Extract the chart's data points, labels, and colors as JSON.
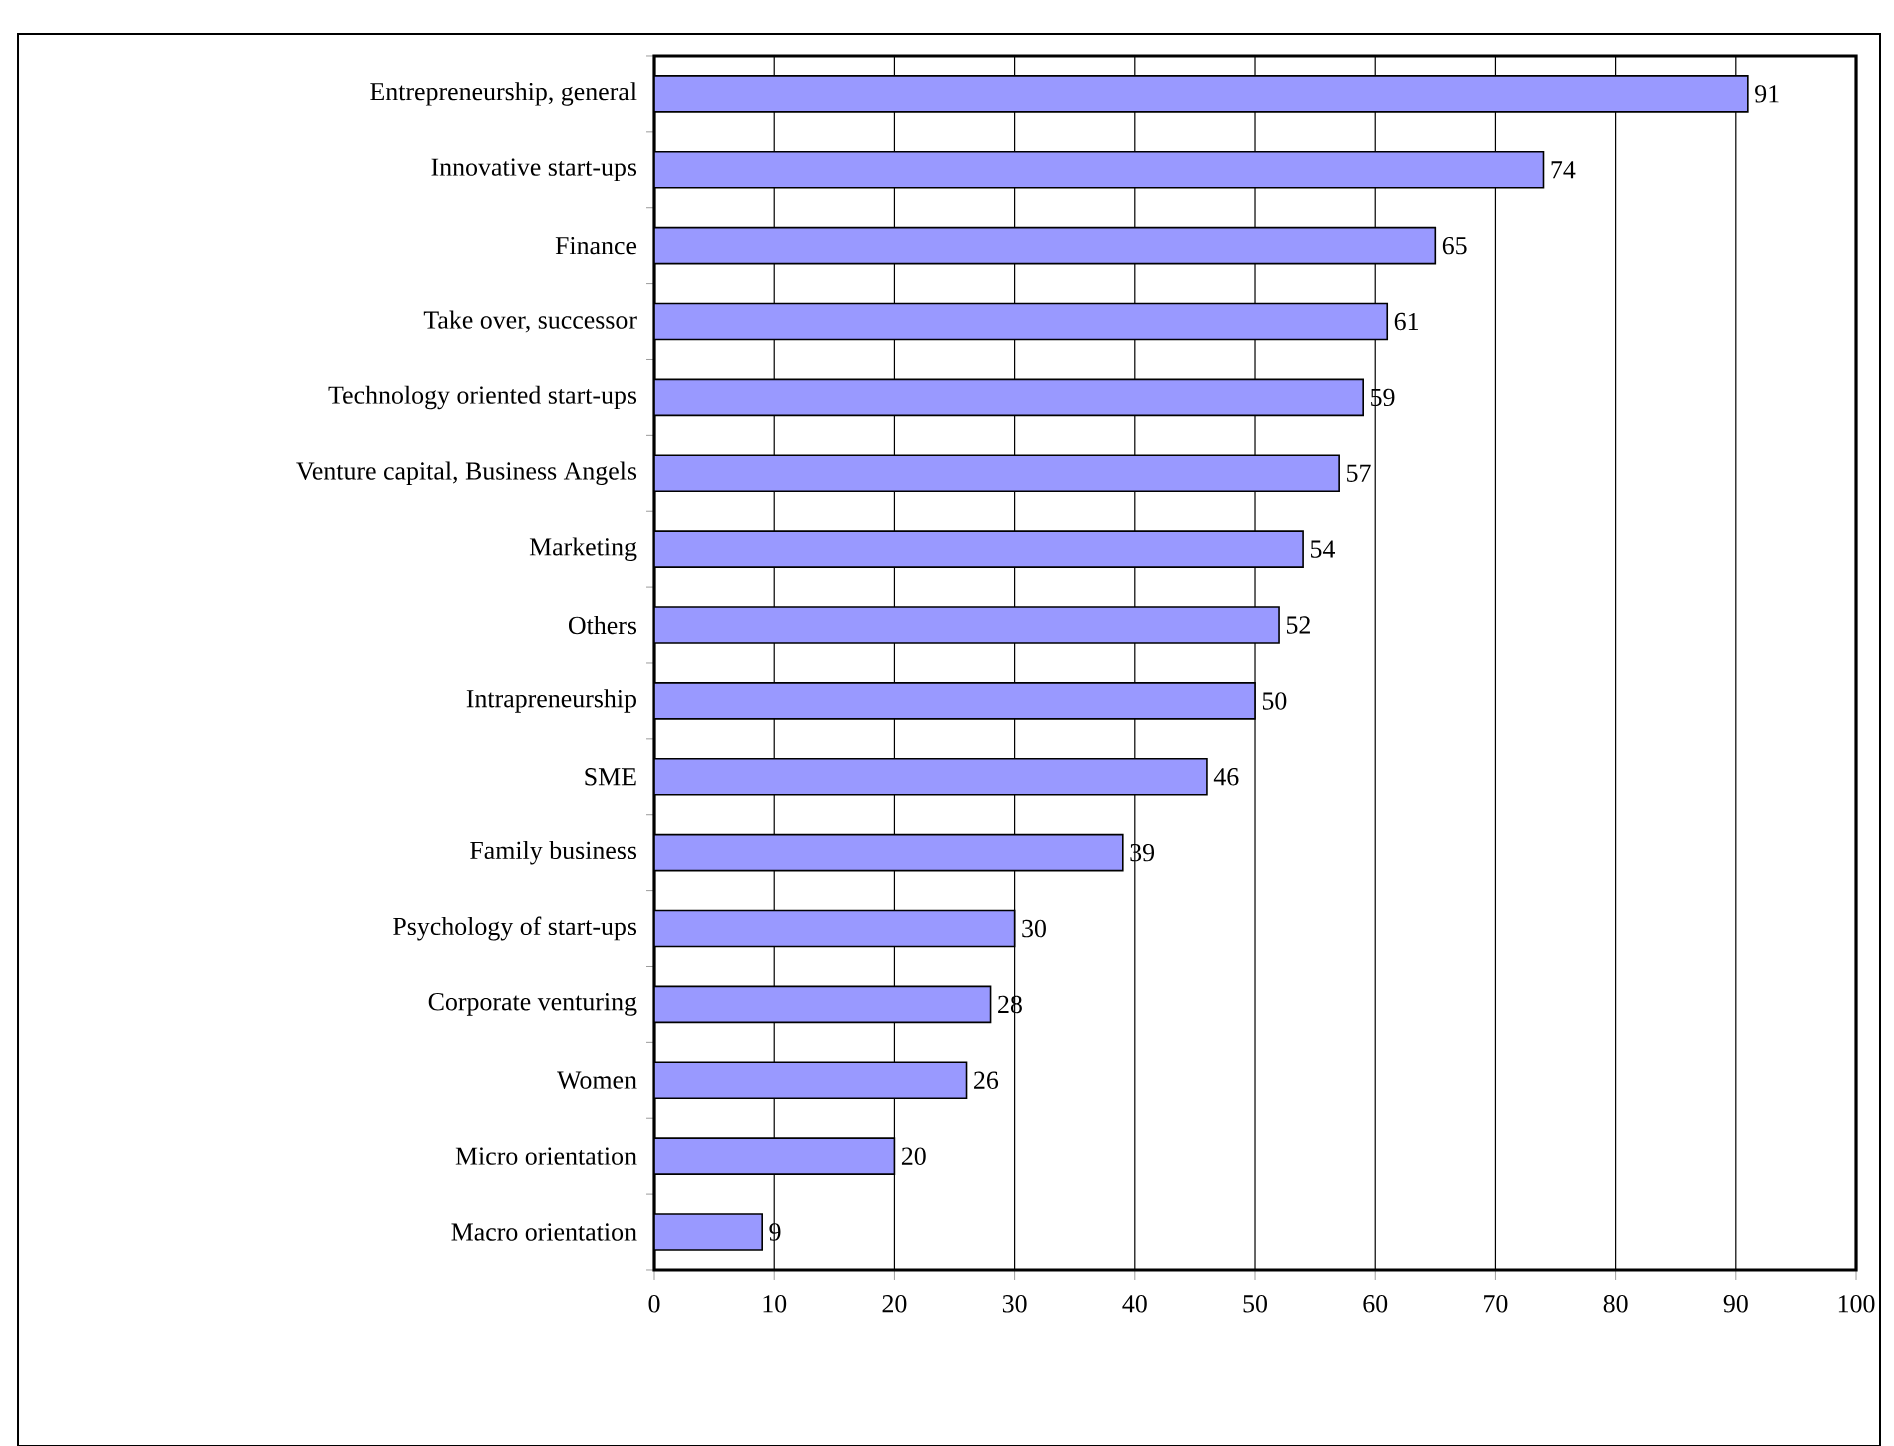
{
  "chart_data": {
    "type": "bar",
    "orientation": "horizontal",
    "categories": [
      "Entrepreneurship, general",
      "Innovative start-ups",
      "Finance",
      "Take over, successor",
      "Technology oriented start-ups",
      "Venture capital, Business Angels",
      "Marketing",
      "Others",
      "Intrapreneurship",
      "SME",
      "Family business",
      "Psychology of start-ups",
      "Corporate venturing",
      "Women",
      "Micro orientation",
      "Macro orientation"
    ],
    "values": [
      91,
      74,
      65,
      61,
      59,
      57,
      54,
      52,
      50,
      46,
      39,
      30,
      28,
      26,
      20,
      9
    ],
    "color": "#9999ff",
    "xlim": [
      0,
      100
    ],
    "xticks": [
      0,
      10,
      20,
      30,
      40,
      50,
      60,
      70,
      80,
      90,
      100
    ],
    "grid": "x",
    "data_labels": true
  }
}
